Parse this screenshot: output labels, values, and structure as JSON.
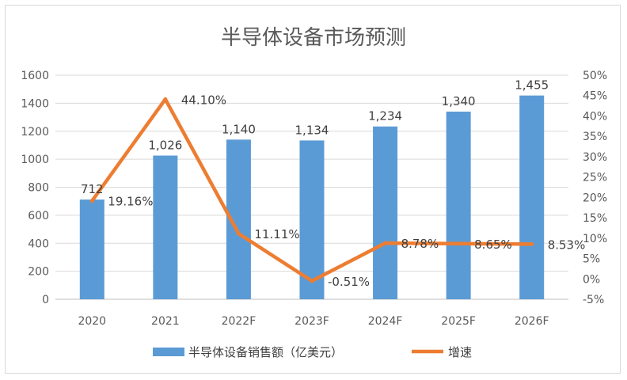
{
  "chart_data": {
    "type": "bar",
    "title": "半导体设备市场预测",
    "categories": [
      "2020",
      "2021",
      "2022F",
      "2023F",
      "2024F",
      "2025F",
      "2026F"
    ],
    "series": [
      {
        "name": "半导体设备销售额（亿美元）",
        "type": "bar",
        "axis": "left",
        "color": "#5b9bd5",
        "values": [
          712,
          1026,
          1140,
          1134,
          1234,
          1340,
          1455
        ],
        "labels": [
          "712",
          "1,026",
          "1,140",
          "1,134",
          "1,234",
          "1,340",
          "1,455"
        ]
      },
      {
        "name": "增速",
        "type": "line",
        "axis": "right",
        "color": "#ed7d31",
        "values": [
          19.16,
          44.1,
          11.11,
          -0.51,
          8.78,
          8.65,
          8.53
        ],
        "labels": [
          "19.16%",
          "44.10%",
          "11.11%",
          "-0.51%",
          "8.78%",
          "8.65%",
          "8.53%"
        ]
      }
    ],
    "y_left": {
      "min": 0,
      "max": 1600,
      "step": 200,
      "ticks": [
        "0",
        "200",
        "400",
        "600",
        "800",
        "1000",
        "1200",
        "1400",
        "1600"
      ]
    },
    "y_right": {
      "min": -5,
      "max": 50,
      "step": 5,
      "ticks": [
        "-5%",
        "0%",
        "5%",
        "10%",
        "15%",
        "20%",
        "25%",
        "30%",
        "35%",
        "40%",
        "45%",
        "50%"
      ]
    },
    "grid": true,
    "legend_position": "bottom"
  }
}
